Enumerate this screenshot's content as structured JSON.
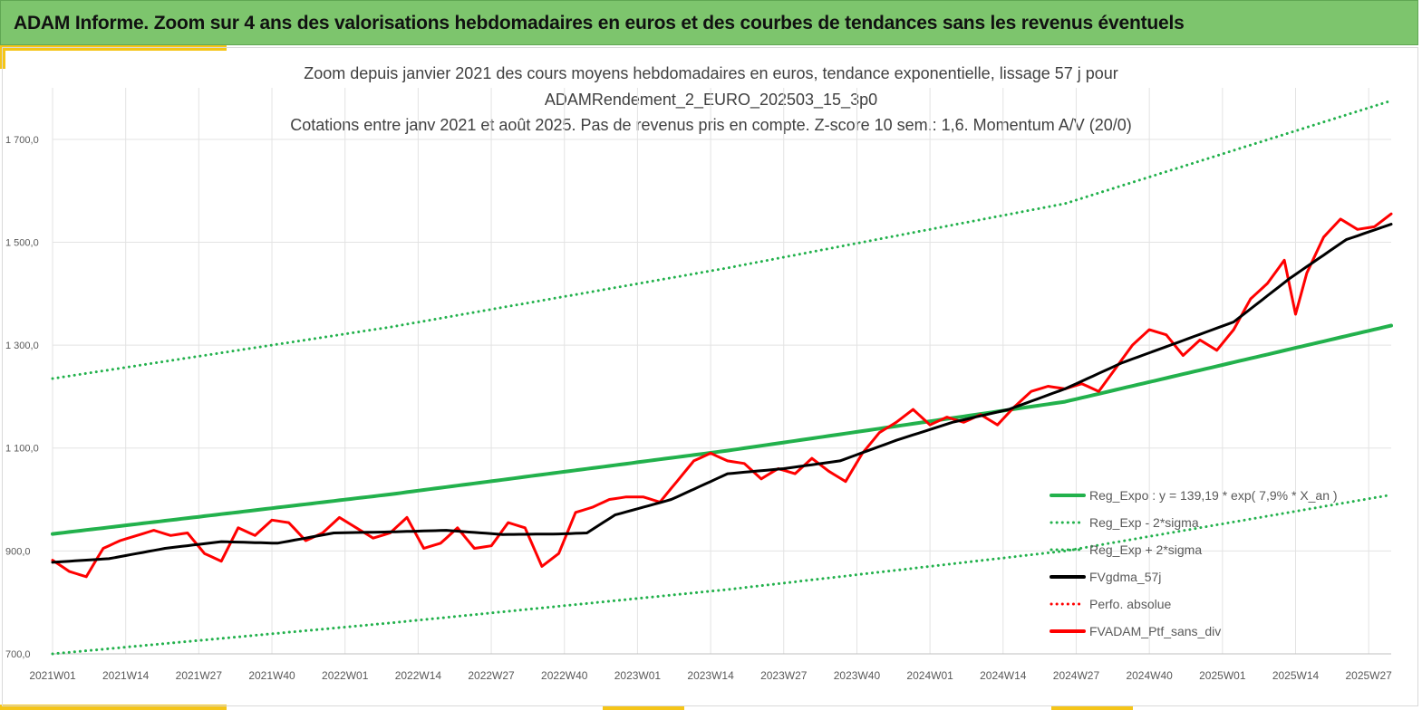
{
  "banner": {
    "title": "ADAM Informe. Zoom sur 4 ans des valorisations hebdomadaires en euros et des courbes de tendances sans les revenus éventuels"
  },
  "colors": {
    "banner": "#7dc56d",
    "accent": "#f5c518",
    "green": "#22b14c",
    "black": "#000000",
    "red": "#ff0000"
  },
  "chart_data": {
    "type": "line",
    "title": [
      "Zoom depuis janvier 2021 des cours moyens hebdomadaires  en euros, tendance exponentielle, lissage 57 j pour",
      "ADAMRendement_2_EURO_202503_15_3p0",
      "Cotations  entre janv 2021 et août 2025. Pas de revenus pris en compte. Z-score 10 sem.: 1,6. Momentum A/V (20/0)"
    ],
    "ylim": [
      700,
      1800
    ],
    "y_ticks": [
      "700,0",
      "900,0",
      "1 100,0",
      "1 300,0",
      "1 500,0",
      "1 700,0"
    ],
    "y_tick_values": [
      700,
      900,
      1100,
      1300,
      1500,
      1700
    ],
    "x_ticks": [
      "2021W01",
      "2021W14",
      "2021W27",
      "2021W40",
      "2022W01",
      "2022W14",
      "2022W27",
      "2022W40",
      "2023W01",
      "2023W14",
      "2023W27",
      "2023W40",
      "2024W01",
      "2024W14",
      "2024W27",
      "2024W40",
      "2025W01",
      "2025W14",
      "2025W27"
    ],
    "x_tick_week_index": [
      0,
      13,
      26,
      39,
      52,
      65,
      78,
      91,
      104,
      117,
      130,
      143,
      156,
      169,
      182,
      195,
      208,
      221,
      234
    ],
    "week_count": 239,
    "grid": true,
    "legend_position": "bottom-right",
    "series": [
      {
        "name": "Reg_Expo : y = 139,19 * exp( 7,9% *  X_an )",
        "color": "#22b14c",
        "style": "solid",
        "x": [
          0,
          60,
          120,
          180,
          238
        ],
        "values": [
          933,
          1010,
          1095,
          1190,
          1338
        ]
      },
      {
        "name": "Reg_Exp - 2*sigma",
        "color": "#22b14c",
        "style": "dotted",
        "x": [
          0,
          60,
          120,
          180,
          238
        ],
        "values": [
          700,
          760,
          825,
          900,
          1009
        ]
      },
      {
        "name": "Reg_Exp + 2*sigma",
        "color": "#22b14c",
        "style": "dotted",
        "x": [
          0,
          60,
          120,
          180,
          238
        ],
        "values": [
          1235,
          1335,
          1450,
          1575,
          1775
        ]
      },
      {
        "name": "FVgdma_57j",
        "color": "#000000",
        "style": "solid",
        "x": [
          0,
          10,
          20,
          30,
          40,
          50,
          60,
          70,
          80,
          90,
          95,
          100,
          110,
          120,
          130,
          140,
          150,
          160,
          170,
          180,
          190,
          200,
          210,
          220,
          230,
          238
        ],
        "values": [
          878,
          885,
          905,
          918,
          915,
          935,
          937,
          940,
          932,
          933,
          935,
          970,
          1000,
          1050,
          1060,
          1075,
          1115,
          1150,
          1175,
          1215,
          1265,
          1305,
          1345,
          1430,
          1505,
          1535
        ]
      },
      {
        "name": "Perfo. absolue",
        "color": "#ff0000",
        "style": "dotted",
        "x": [],
        "values": []
      },
      {
        "name": "FVADAM_Ptf_sans_div",
        "color": "#ff0000",
        "style": "solid",
        "x": [
          0,
          3,
          6,
          9,
          12,
          15,
          18,
          21,
          24,
          27,
          30,
          33,
          36,
          39,
          42,
          45,
          48,
          51,
          54,
          57,
          60,
          63,
          66,
          69,
          72,
          75,
          78,
          81,
          84,
          87,
          90,
          93,
          96,
          99,
          102,
          105,
          108,
          111,
          114,
          117,
          120,
          123,
          126,
          129,
          132,
          135,
          138,
          141,
          144,
          147,
          150,
          153,
          156,
          159,
          162,
          165,
          168,
          171,
          174,
          177,
          180,
          183,
          186,
          189,
          192,
          195,
          198,
          201,
          204,
          207,
          210,
          213,
          216,
          219,
          221,
          223,
          226,
          229,
          232,
          235,
          238
        ],
        "values": [
          882,
          860,
          850,
          905,
          920,
          930,
          940,
          930,
          935,
          895,
          880,
          945,
          930,
          960,
          955,
          920,
          935,
          965,
          945,
          925,
          935,
          965,
          905,
          915,
          945,
          905,
          910,
          955,
          945,
          870,
          895,
          975,
          985,
          1000,
          1005,
          1005,
          995,
          1035,
          1075,
          1090,
          1075,
          1070,
          1040,
          1060,
          1050,
          1080,
          1055,
          1035,
          1090,
          1130,
          1150,
          1175,
          1145,
          1160,
          1150,
          1165,
          1145,
          1180,
          1210,
          1220,
          1215,
          1225,
          1210,
          1255,
          1300,
          1330,
          1320,
          1280,
          1310,
          1290,
          1330,
          1390,
          1420,
          1465,
          1360,
          1440,
          1510,
          1545,
          1525,
          1530,
          1555
        ]
      }
    ]
  }
}
